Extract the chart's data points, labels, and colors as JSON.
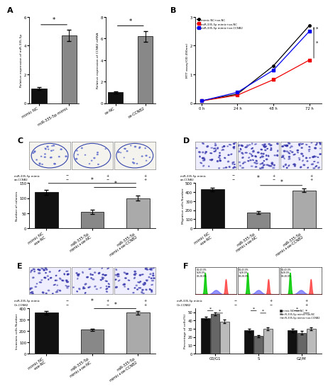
{
  "panel_A1": {
    "categories": [
      "mimic NC",
      "miR-335-5p mimic"
    ],
    "values": [
      1.0,
      4.7
    ],
    "errors": [
      0.1,
      0.4
    ],
    "colors": [
      "#111111",
      "#888888"
    ],
    "ylabel": "Relative expression of miR-335-5p",
    "ylim": [
      0,
      6
    ],
    "yticks": [
      0,
      2,
      4,
      6
    ]
  },
  "panel_A2": {
    "categories": [
      "oe-NC",
      "oe-CCNB2"
    ],
    "values": [
      1.0,
      6.2
    ],
    "errors": [
      0.1,
      0.5
    ],
    "colors": [
      "#111111",
      "#888888"
    ],
    "ylabel": "Relative expression of CCNB2 mRNA",
    "ylim": [
      0,
      8
    ],
    "yticks": [
      0,
      2,
      4,
      6,
      8
    ]
  },
  "panel_B": {
    "timepoints": [
      0,
      24,
      48,
      72
    ],
    "series": [
      {
        "label": "mimic NC+oe-NC",
        "values": [
          0.08,
          0.32,
          1.3,
          2.7
        ],
        "color": "#000000",
        "marker": "o"
      },
      {
        "label": "miR-335-5p mimic+oe-NC",
        "values": [
          0.08,
          0.28,
          0.82,
          1.5
        ],
        "color": "#ee0000",
        "marker": "s"
      },
      {
        "label": "miR-335-5p mimic+oe-CCNB2",
        "values": [
          0.08,
          0.38,
          1.15,
          2.5
        ],
        "color": "#0000ee",
        "marker": "s"
      }
    ],
    "ylabel": "MTT assay(OD 490nm)",
    "ylim": [
      0,
      3
    ],
    "yticks": [
      0,
      1,
      2,
      3
    ],
    "xtick_labels": [
      "0 h",
      "24 h",
      "48 h",
      "72 h"
    ]
  },
  "panel_C": {
    "values": [
      120,
      55,
      100
    ],
    "errors": [
      8,
      7,
      8
    ],
    "colors": [
      "#111111",
      "#888888",
      "#aaaaaa"
    ],
    "ylabel": "Number of colonies",
    "ylim": [
      0,
      150
    ],
    "yticks": [
      0,
      50,
      100,
      150
    ],
    "xticklabels": [
      "mimic NC\n+oe-NC",
      "miR-335-5p\nmimic+oe-NC",
      "miR-335-5p\nmimic+oe-CCNB2"
    ],
    "img_density": [
      30,
      15,
      25
    ]
  },
  "panel_D": {
    "values": [
      430,
      175,
      420
    ],
    "errors": [
      18,
      14,
      18
    ],
    "colors": [
      "#111111",
      "#888888",
      "#aaaaaa"
    ],
    "ylabel": "Migrative cells Number",
    "ylim": [
      0,
      500
    ],
    "yticks": [
      0,
      100,
      200,
      300,
      400,
      500
    ],
    "xticklabels": [
      "mimic NC\n+oe-NC",
      "miR-335-5p\nmimic+oe-NC",
      "miR-335-5p\nmimic+oe-CCNB2"
    ],
    "img_density": [
      60,
      80,
      70
    ]
  },
  "panel_E": {
    "values": [
      360,
      210,
      360
    ],
    "errors": [
      14,
      10,
      16
    ],
    "colors": [
      "#111111",
      "#888888",
      "#aaaaaa"
    ],
    "ylabel": "Invasions cells Number",
    "ylim": [
      0,
      400
    ],
    "yticks": [
      0,
      100,
      200,
      300,
      400
    ],
    "xticklabels": [
      "mimic NC\n+oe-NC",
      "miR-335-5p\nmimic+oe-NC",
      "miR-335-5p\nmimic+oe-CCNB2"
    ],
    "img_density": [
      55,
      40,
      58
    ]
  },
  "panel_F": {
    "groups": [
      "G0/G1",
      "S",
      "G2/M"
    ],
    "series": [
      {
        "label": "mimic NC+oe-NC",
        "values": [
          43,
          28,
          28
        ],
        "errors": [
          2,
          2,
          2
        ],
        "color": "#111111"
      },
      {
        "label": "miR-335-5p mimic+oe-NC",
        "values": [
          48,
          21,
          25
        ],
        "errors": [
          2,
          1.5,
          2
        ],
        "color": "#666666"
      },
      {
        "label": "miR-335-5p mimic+oe-CCNB2",
        "values": [
          39,
          30,
          30
        ],
        "errors": [
          2,
          2,
          2
        ],
        "color": "#bbbbbb"
      }
    ],
    "ylabel": "Percentage of cells(%)",
    "ylim": [
      0,
      55
    ],
    "yticks": [
      0,
      10,
      20,
      30,
      40,
      50
    ]
  }
}
